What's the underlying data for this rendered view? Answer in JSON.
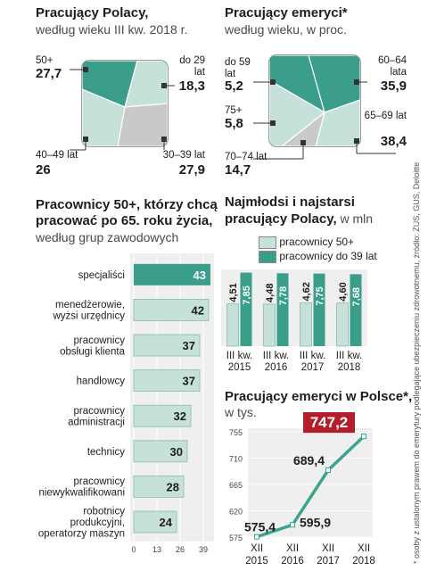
{
  "colors": {
    "teal": "#3a9e8a",
    "light": "#c5e1d9",
    "gray": "#c9c9c9",
    "redbox": "#b41e2a",
    "line": "#3aa58f",
    "grid": "#e0e0e0"
  },
  "panel1": {
    "title": "Pracujący Polacy,",
    "subtitle": "według wieku III kw. 2018 r.",
    "labels": {
      "tl": {
        "name": "50+",
        "value": "27,7"
      },
      "tr": {
        "name": "do 29 lat",
        "value": "18,3"
      },
      "bl": {
        "name": "40–49 lat",
        "value": "26"
      },
      "br": {
        "name": "30–39 lat",
        "value": "27,9"
      }
    }
  },
  "panel2": {
    "title": "Pracujący emeryci*",
    "subtitle": "według wieku, w proc.",
    "labels": {
      "a": {
        "name": "do 59 lat",
        "value": "5,2"
      },
      "b": {
        "name": "60–64 lata",
        "value": "35,9"
      },
      "c": {
        "name": "75+",
        "value": "5,8"
      },
      "d": {
        "name": "65–69 lat",
        "value": "38,4"
      },
      "e": {
        "name": "70–74 lat",
        "value": "14,7"
      }
    }
  },
  "panel3": {
    "title1": "Pracownicy 50+, którzy chcą",
    "title2": "pracować po 65. roku życia,",
    "subtitle": "według grup zawodowych"
  },
  "panel4": {
    "title1": "Najmłodsi i najstarsi",
    "title2": "pracujący Polacy,",
    "unit": " w mln",
    "legend1": "pracownicy 50+",
    "legend2": "pracownicy do 39 lat"
  },
  "panel5": {
    "title": "Pracujący emeryci w Polsce*,",
    "subtitle": "w tys."
  },
  "side_note": "* osoby z ustalonym prawem do emerytury podlegające ubezpieczeniu zdrowotnemu, źródło: ZUS, GUS, Deloitte",
  "chart_data": [
    {
      "type": "pie",
      "title": "Pracujący Polacy,",
      "subtitle": "według wieku III kw. 2018 r.",
      "slices": [
        {
          "label": "50+",
          "value": 27.7,
          "display": "27,7"
        },
        {
          "label": "do 29 lat",
          "value": 18.3,
          "display": "18,3"
        },
        {
          "label": "30–39 lat",
          "value": 27.9,
          "display": "27,9"
        },
        {
          "label": "40–49 lat",
          "value": 26,
          "display": "26"
        }
      ]
    },
    {
      "type": "pie",
      "title": "Pracujący emeryci*",
      "subtitle": "według wieku, w proc.",
      "slices": [
        {
          "label": "do 59 lat",
          "value": 5.2,
          "display": "5,2"
        },
        {
          "label": "60–64 lata",
          "value": 35.9,
          "display": "35,9"
        },
        {
          "label": "65–69 lat",
          "value": 38.4,
          "display": "38,4"
        },
        {
          "label": "70–74 lat",
          "value": 14.7,
          "display": "14,7"
        },
        {
          "label": "75+",
          "value": 5.8,
          "display": "5,8"
        }
      ]
    },
    {
      "type": "bar",
      "orientation": "horizontal",
      "title": "Pracownicy 50+, którzy chcą pracować po 65. roku życia,",
      "subtitle": "według grup zawodowych",
      "categories": [
        "specjaliści",
        "menedżerowie, wyżsi urzędnicy",
        "pracownicy obsługi klienta",
        "handlowcy",
        "pracownicy administracji",
        "technicy",
        "pracownicy niewykwalifikowani",
        "robotnicy produkcyjni, operatorzy maszyn"
      ],
      "values": [
        43,
        42,
        37,
        37,
        32,
        30,
        28,
        24
      ],
      "xticks": [
        "0",
        "13",
        "26",
        "39",
        "52"
      ],
      "xlim": [
        0,
        52
      ],
      "grid": true
    },
    {
      "type": "bar",
      "title": "Najmłodsi i najstarsi pracujący Polacy, w mln",
      "categories": [
        [
          "III kw.",
          "2015"
        ],
        [
          "III kw.",
          "2016"
        ],
        [
          "III kw.",
          "2017"
        ],
        [
          "III kw.",
          "2018"
        ]
      ],
      "series": [
        {
          "name": "pracownicy 50+",
          "values": [
            4.51,
            4.48,
            4.62,
            4.6
          ],
          "labels": [
            "4,51",
            "4,48",
            "4,62",
            "4,60"
          ]
        },
        {
          "name": "pracownicy do 39 lat",
          "values": [
            7.85,
            7.78,
            7.75,
            7.68
          ],
          "labels": [
            "7,85",
            "7,78",
            "7,75",
            "7,68"
          ]
        }
      ],
      "ylim": [
        0,
        8
      ],
      "grid": true,
      "legend": "top"
    },
    {
      "type": "line",
      "title": "Pracujący emeryci w Polsce*,",
      "subtitle": "w tys.",
      "x": [
        [
          "XII",
          "2015"
        ],
        [
          "XII",
          "2016"
        ],
        [
          "XII",
          "2017"
        ],
        [
          "XII",
          "2018"
        ]
      ],
      "y": [
        575.4,
        595.9,
        689.4,
        747.2
      ],
      "labels": [
        "575,4",
        "595,9",
        "689,4",
        "747,2"
      ],
      "yticks": [
        "575",
        "620",
        "665",
        "710",
        "755"
      ],
      "ylim": [
        575,
        755
      ],
      "grid": true
    }
  ]
}
